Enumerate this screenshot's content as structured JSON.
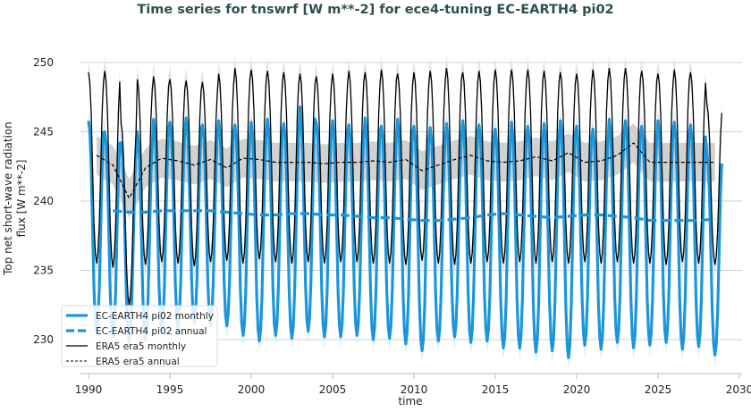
{
  "chart_data": {
    "type": "line",
    "title": "Time series for tnswrf [W m**-2] for ece4-tuning EC-EARTH4 pi02",
    "xlabel": "time",
    "ylabel": "Top net short-wave radiation flux [W m**-2]",
    "xlim": [
      1988.2,
      2030.5
    ],
    "ylim": [
      227.5,
      252.5
    ],
    "xticks": [
      1990,
      1995,
      2000,
      2005,
      2010,
      2015,
      2020,
      2025,
      2030
    ],
    "yticks": [
      230,
      235,
      240,
      245,
      250
    ],
    "grid": "horizontal",
    "legend_position": "lower-left",
    "years": [
      1990,
      1991,
      1992,
      1993,
      1994,
      1995,
      1996,
      1997,
      1998,
      1999,
      2000,
      2001,
      2002,
      2003,
      2004,
      2005,
      2006,
      2007,
      2008,
      2009,
      2010,
      2011,
      2012,
      2013,
      2014,
      2015,
      2016,
      2017,
      2018,
      2019,
      2020,
      2021,
      2022,
      2023,
      2024,
      2025,
      2026,
      2027,
      2028
    ],
    "series": [
      {
        "name": "EC-EARTH4 pi02 monthly",
        "color": "#1a96dc",
        "style": "solid-thick",
        "annual_peak": [
          245.8,
          245.0,
          244.2,
          245.0,
          245.9,
          245.7,
          246.0,
          245.5,
          245.8,
          245.5,
          245.7,
          245.9,
          245.6,
          246.8,
          245.6,
          245.8,
          245.5,
          246.0,
          245.4,
          245.9,
          245.4,
          245.3,
          245.6,
          245.8,
          245.5,
          245.2,
          245.7,
          245.4,
          245.6,
          245.8,
          245.4,
          245.2,
          245.9,
          245.8,
          245.4,
          245.8,
          245.7,
          245.5,
          243.5
        ],
        "annual_trough": [
          230.5,
          230.2,
          229.8,
          230.0,
          230.6,
          230.9,
          231.2,
          231.0,
          231.0,
          230.3,
          229.9,
          230.3,
          230.1,
          230.6,
          230.2,
          230.2,
          230.3,
          230.0,
          230.1,
          229.7,
          229.2,
          229.9,
          230.2,
          229.8,
          229.9,
          229.4,
          229.4,
          229.1,
          229.2,
          228.7,
          229.6,
          229.3,
          229.8,
          229.4,
          229.6,
          229.8,
          229.3,
          229.5,
          228.9
        ]
      },
      {
        "name": "EC-EARTH4 pi02 annual",
        "color": "#1a96dc",
        "style": "dashed-thick",
        "values": [
          null,
          239.3,
          239.2,
          239.2,
          239.3,
          239.3,
          239.3,
          239.3,
          239.2,
          239.1,
          239.0,
          239.0,
          239.1,
          239.1,
          239.0,
          239.0,
          238.9,
          238.8,
          238.8,
          238.7,
          238.6,
          238.6,
          238.7,
          238.8,
          239.0,
          239.1,
          239.0,
          238.9,
          238.8,
          238.9,
          239.0,
          239.0,
          238.9,
          238.8,
          238.6,
          238.6,
          238.6,
          238.6,
          238.7
        ]
      },
      {
        "name": "ERA5 era5 monthly",
        "color": "#000000",
        "style": "solid-thin",
        "annual_peak": [
          249.3,
          249.4,
          245.6,
          248.8,
          249.0,
          248.8,
          248.7,
          248.6,
          249.2,
          249.6,
          249.5,
          249.4,
          249.3,
          249.2,
          249.0,
          249.2,
          249.4,
          249.3,
          249.5,
          249.2,
          249.3,
          249.4,
          249.6,
          249.3,
          249.4,
          249.5,
          249.5,
          249.5,
          249.4,
          249.3,
          249.2,
          249.5,
          249.6,
          249.6,
          249.4,
          249.2,
          249.5,
          249.3,
          247.0
        ],
        "annual_trough": [
          235.5,
          235.2,
          232.5,
          235.4,
          235.6,
          235.5,
          235.3,
          235.6,
          235.7,
          235.5,
          235.8,
          235.6,
          235.5,
          235.6,
          235.5,
          235.6,
          235.6,
          235.5,
          235.5,
          235.4,
          235.7,
          235.5,
          235.4,
          235.5,
          235.6,
          235.5,
          235.6,
          235.5,
          235.6,
          235.5,
          235.6,
          235.5,
          235.6,
          235.5,
          235.5,
          235.4,
          235.6,
          235.5,
          235.4
        ]
      },
      {
        "name": "ERA5 era5 annual",
        "color": "#000000",
        "style": "dashed-thin",
        "values": [
          243.3,
          242.6,
          240.2,
          242.4,
          243.1,
          242.9,
          242.6,
          243.0,
          242.4,
          243.1,
          243.0,
          242.8,
          242.8,
          242.8,
          242.7,
          242.8,
          242.8,
          242.9,
          242.8,
          243.0,
          242.2,
          242.6,
          243.0,
          243.3,
          242.9,
          242.8,
          242.9,
          243.2,
          242.9,
          243.5,
          242.8,
          242.9,
          243.3,
          244.2,
          242.8,
          242.8,
          242.8,
          242.8,
          242.8
        ]
      }
    ],
    "band_color": "#cccccc"
  }
}
